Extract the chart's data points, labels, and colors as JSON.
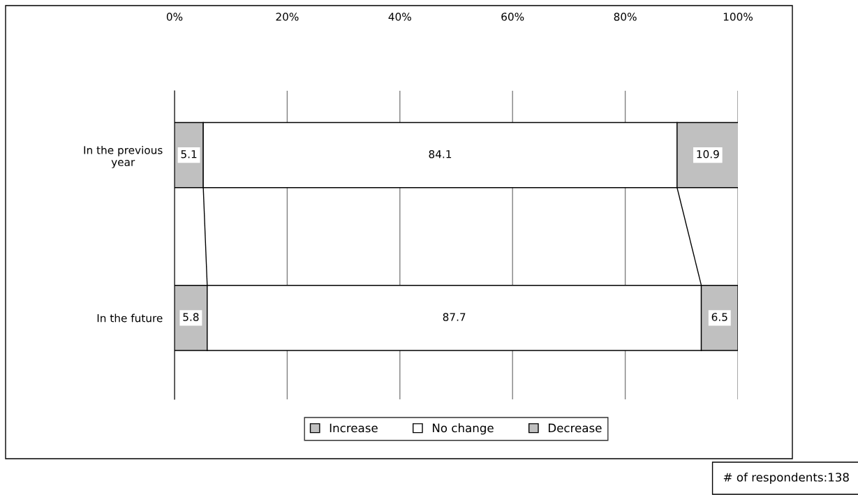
{
  "chart_data": {
    "type": "bar",
    "orientation": "horizontal",
    "stacked": true,
    "categories": [
      "In the previous\nyear",
      "In the future"
    ],
    "series": [
      {
        "name": "Increase",
        "color": "#c0c0c0",
        "values": [
          5.1,
          5.8
        ]
      },
      {
        "name": "No change",
        "color": "#ffffff",
        "values": [
          84.1,
          87.7
        ]
      },
      {
        "name": "Decrease",
        "color": "#c0c0c0",
        "values": [
          10.9,
          6.5
        ]
      }
    ],
    "xlim": [
      0,
      100
    ],
    "xticks": [
      {
        "value": 0,
        "label": "0%"
      },
      {
        "value": 20,
        "label": "20%"
      },
      {
        "value": 40,
        "label": "40%"
      },
      {
        "value": 60,
        "label": "60%"
      },
      {
        "value": 80,
        "label": "80%"
      },
      {
        "value": 100,
        "label": "100%"
      }
    ],
    "grid": "x",
    "legend": "bottom",
    "data_labels": true,
    "annotations": [
      "# of respondents:138"
    ]
  }
}
